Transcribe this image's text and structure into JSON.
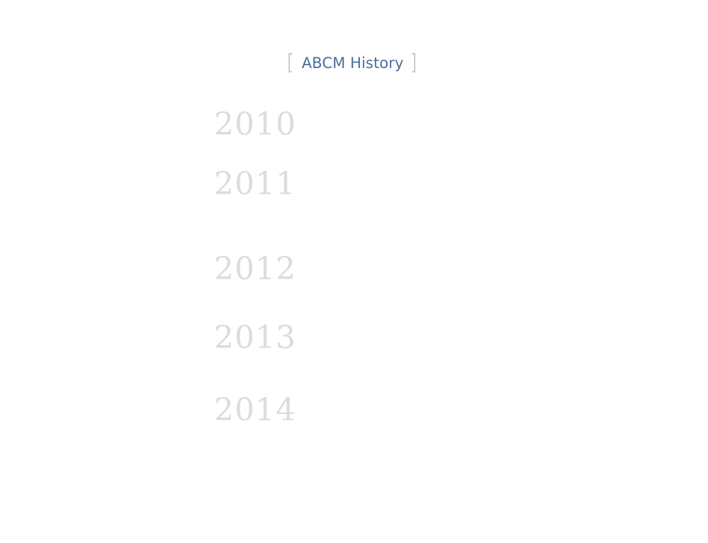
{
  "header": {
    "title": "ABCM History",
    "bracket_open": "[",
    "bracket_close": "]"
  },
  "timeline": {
    "years": [
      "2010",
      "2011",
      "2012",
      "2013",
      "2014"
    ]
  },
  "colors": {
    "title": "#4a6f9a",
    "bracket": "#b8b8b8",
    "year": "#dcdcdc",
    "background": "#ffffff"
  }
}
